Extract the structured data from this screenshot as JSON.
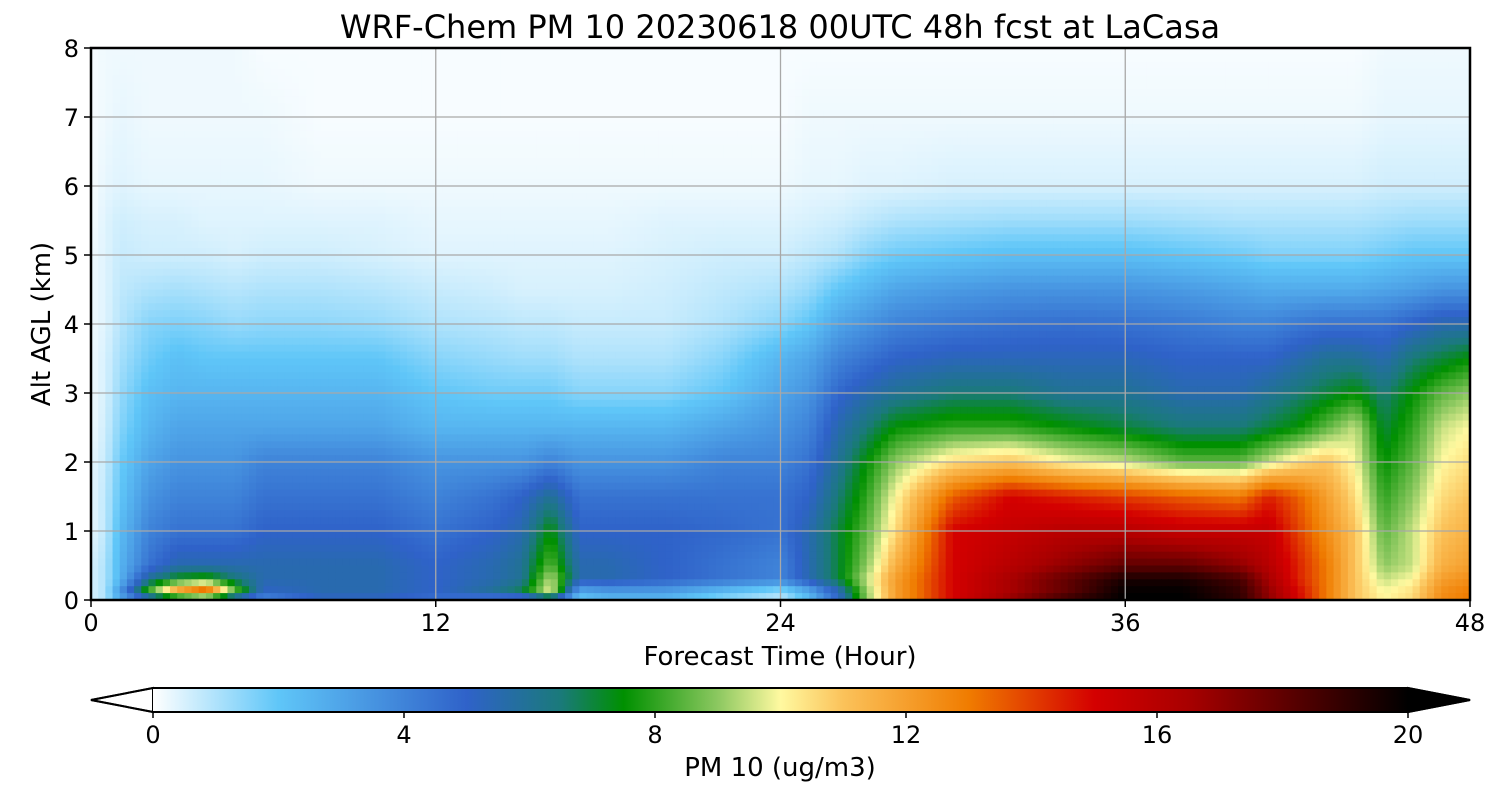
{
  "chart_data": {
    "type": "heatmap",
    "title": "WRF-Chem PM 10  20230618 00UTC 48h fcst at LaCasa",
    "xlabel": "Forecast Time (Hour)",
    "ylabel": "Alt AGL (km)",
    "xlim": [
      0,
      48
    ],
    "ylim": [
      0,
      8
    ],
    "x_ticks": [
      0,
      12,
      24,
      36,
      48
    ],
    "y_ticks": [
      0,
      1,
      2,
      3,
      4,
      5,
      6,
      7,
      8
    ],
    "grid": true,
    "colorbar": {
      "label": "PM 10  (ug/m3)",
      "range": [
        0,
        20
      ],
      "ticks": [
        0,
        4,
        8,
        12,
        16,
        20
      ],
      "extend": "both",
      "orientation": "horizontal",
      "placement": "bottom",
      "stops": [
        {
          "v": 0,
          "c": "#ffffff"
        },
        {
          "v": 2,
          "c": "#5fc6f8"
        },
        {
          "v": 5,
          "c": "#2f62c9"
        },
        {
          "v": 6.5,
          "c": "#1a7a7a"
        },
        {
          "v": 7.5,
          "c": "#009000"
        },
        {
          "v": 9,
          "c": "#8cc860"
        },
        {
          "v": 10,
          "c": "#fff9a0"
        },
        {
          "v": 11,
          "c": "#fbc25a"
        },
        {
          "v": 13,
          "c": "#f07c00"
        },
        {
          "v": 15,
          "c": "#d40000"
        },
        {
          "v": 16.5,
          "c": "#a80000"
        },
        {
          "v": 20,
          "c": "#000000"
        }
      ]
    },
    "time_hours": [
      0,
      0.5,
      1,
      2,
      3,
      4,
      5,
      6,
      8,
      10,
      12,
      14,
      15,
      16,
      17,
      18,
      20,
      22,
      24,
      25,
      26,
      27,
      28,
      30,
      32,
      34,
      36,
      38,
      40,
      41,
      42,
      43,
      44,
      45,
      46,
      47,
      48
    ],
    "altitude_km": [
      0,
      0.1,
      0.3,
      0.5,
      1,
      1.5,
      2,
      2.5,
      3,
      3.5,
      4,
      4.5,
      5,
      5.5,
      6,
      7,
      8
    ],
    "values": [
      [
        0.5,
        1.0,
        2.5,
        3.5,
        3.5,
        3.5,
        3.5,
        3.5,
        5.0,
        5.0,
        4.5,
        3.5,
        3.0,
        4.0,
        2.0,
        2.5,
        2.5,
        1.5,
        1.0,
        2.5,
        5.0,
        9.0,
        12.0,
        15.0,
        17.0,
        19.0,
        20.0,
        20.0,
        19.0,
        17.0,
        15.0,
        13.0,
        11.0,
        10.0,
        10.5,
        12.5,
        13.0
      ],
      [
        0.5,
        1.0,
        3.5,
        8.5,
        13.0,
        15.0,
        9.0,
        5.0,
        5.5,
        5.5,
        5.0,
        6.0,
        7.0,
        10.0,
        2.5,
        3.0,
        3.0,
        2.0,
        1.0,
        2.5,
        5.0,
        9.0,
        12.0,
        15.0,
        16.5,
        18.0,
        20.0,
        20.0,
        19.0,
        17.0,
        15.0,
        13.0,
        11.0,
        10.0,
        10.5,
        12.5,
        13.0
      ],
      [
        0.5,
        1.0,
        2.5,
        6.0,
        7.5,
        8.0,
        6.5,
        5.5,
        5.5,
        5.5,
        5.0,
        5.5,
        6.0,
        9.5,
        5.5,
        5.5,
        5.0,
        4.5,
        4.0,
        5.5,
        7.0,
        9.5,
        12.0,
        15.0,
        16.5,
        18.0,
        19.5,
        19.5,
        18.5,
        16.5,
        14.5,
        13.0,
        11.0,
        9.5,
        10.0,
        12.0,
        12.5
      ],
      [
        0.5,
        1.0,
        2.5,
        4.5,
        5.5,
        5.5,
        5.5,
        5.5,
        5.5,
        5.5,
        5.0,
        5.5,
        6.0,
        8.5,
        5.5,
        5.5,
        5.0,
        4.5,
        4.0,
        5.5,
        7.0,
        9.0,
        11.5,
        15.0,
        16.0,
        17.0,
        18.0,
        18.0,
        17.0,
        16.0,
        14.5,
        13.0,
        11.0,
        9.0,
        9.5,
        11.5,
        12.0
      ],
      [
        0.3,
        0.8,
        2.3,
        4.0,
        4.5,
        4.5,
        4.5,
        5.0,
        5.0,
        5.0,
        4.5,
        5.0,
        5.5,
        7.5,
        5.0,
        5.0,
        5.0,
        4.8,
        4.5,
        5.5,
        7.0,
        8.5,
        10.5,
        15.0,
        15.5,
        16.0,
        16.0,
        15.5,
        15.5,
        15.5,
        14.0,
        12.5,
        11.0,
        8.5,
        9.5,
        11.0,
        11.5
      ],
      [
        0.3,
        0.8,
        2.0,
        3.5,
        4.0,
        4.0,
        4.0,
        4.5,
        4.5,
        4.5,
        4.0,
        4.5,
        5.0,
        6.0,
        4.5,
        4.5,
        4.5,
        4.5,
        4.5,
        5.0,
        6.5,
        8.0,
        10.0,
        13.5,
        15.0,
        14.5,
        14.0,
        13.5,
        13.0,
        14.5,
        13.5,
        12.0,
        10.5,
        8.0,
        9.0,
        10.5,
        11.0
      ],
      [
        0.3,
        0.7,
        1.8,
        3.0,
        3.5,
        3.5,
        3.5,
        4.0,
        4.0,
        4.0,
        3.5,
        3.5,
        3.5,
        4.0,
        3.5,
        3.5,
        3.5,
        4.0,
        4.0,
        4.5,
        6.0,
        7.5,
        9.0,
        10.5,
        11.0,
        10.0,
        9.5,
        8.5,
        8.5,
        9.5,
        10.5,
        11.0,
        10.0,
        7.5,
        8.5,
        10.0,
        10.5
      ],
      [
        0.2,
        0.6,
        1.5,
        2.5,
        3.0,
        3.0,
        3.0,
        3.0,
        3.0,
        3.0,
        2.5,
        2.5,
        2.5,
        2.5,
        2.5,
        2.5,
        2.5,
        3.0,
        3.5,
        4.0,
        5.5,
        6.5,
        7.5,
        8.0,
        8.0,
        7.5,
        7.0,
        6.5,
        6.5,
        7.0,
        7.5,
        8.5,
        9.5,
        7.0,
        8.0,
        9.5,
        10.0
      ],
      [
        0.2,
        0.5,
        1.3,
        2.2,
        2.5,
        2.5,
        2.5,
        2.5,
        2.5,
        2.5,
        2.0,
        1.8,
        1.8,
        1.8,
        1.5,
        1.5,
        1.5,
        2.0,
        3.0,
        3.5,
        4.8,
        5.5,
        6.0,
        6.5,
        6.5,
        6.0,
        6.0,
        5.5,
        5.5,
        6.0,
        6.5,
        7.0,
        7.5,
        6.5,
        7.5,
        8.5,
        9.0
      ],
      [
        0.2,
        0.5,
        1.1,
        1.8,
        2.2,
        2.0,
        2.0,
        2.0,
        2.0,
        2.0,
        1.5,
        1.3,
        1.2,
        1.2,
        1.0,
        1.0,
        1.0,
        1.5,
        2.5,
        3.0,
        4.0,
        4.5,
        5.0,
        5.3,
        5.3,
        5.3,
        5.3,
        5.0,
        5.0,
        5.0,
        5.5,
        6.0,
        6.0,
        5.5,
        6.5,
        7.0,
        7.5
      ],
      [
        0.2,
        0.4,
        0.9,
        1.5,
        1.6,
        1.5,
        1.3,
        1.4,
        1.4,
        1.3,
        1.0,
        0.9,
        0.8,
        0.8,
        0.7,
        0.7,
        0.7,
        1.0,
        1.5,
        2.0,
        3.0,
        3.5,
        4.0,
        4.3,
        4.5,
        4.6,
        4.5,
        4.3,
        4.0,
        4.0,
        4.3,
        4.5,
        4.5,
        4.5,
        5.0,
        5.5,
        5.5
      ],
      [
        0.2,
        0.4,
        0.8,
        1.0,
        1.1,
        1.0,
        0.9,
        1.0,
        1.0,
        0.9,
        0.7,
        0.6,
        0.5,
        0.5,
        0.5,
        0.5,
        0.6,
        0.8,
        1.0,
        1.3,
        2.0,
        2.5,
        3.0,
        3.3,
        3.5,
        3.5,
        3.5,
        3.3,
        3.0,
        2.8,
        2.8,
        2.8,
        2.8,
        3.0,
        3.2,
        3.5,
        3.5
      ],
      [
        0.2,
        0.4,
        0.7,
        0.6,
        0.6,
        0.6,
        0.5,
        0.6,
        0.6,
        0.5,
        0.4,
        0.4,
        0.4,
        0.4,
        0.4,
        0.4,
        0.5,
        0.6,
        0.6,
        0.8,
        1.0,
        1.5,
        1.8,
        2.0,
        2.2,
        2.2,
        2.2,
        2.0,
        1.8,
        1.6,
        1.6,
        1.6,
        1.6,
        1.8,
        2.0,
        2.0,
        2.0
      ],
      [
        0.1,
        0.4,
        0.6,
        0.5,
        0.5,
        0.4,
        0.4,
        0.4,
        0.4,
        0.4,
        0.3,
        0.3,
        0.3,
        0.3,
        0.3,
        0.3,
        0.4,
        0.4,
        0.4,
        0.5,
        0.6,
        0.8,
        1.0,
        1.1,
        1.2,
        1.2,
        1.2,
        1.1,
        1.0,
        1.0,
        1.0,
        1.0,
        1.0,
        1.1,
        1.2,
        1.2,
        1.2
      ],
      [
        0.1,
        0.3,
        0.4,
        0.3,
        0.3,
        0.3,
        0.3,
        0.3,
        0.2,
        0.2,
        0.2,
        0.2,
        0.2,
        0.2,
        0.2,
        0.2,
        0.2,
        0.2,
        0.2,
        0.3,
        0.3,
        0.4,
        0.4,
        0.5,
        0.5,
        0.5,
        0.5,
        0.5,
        0.5,
        0.5,
        0.5,
        0.5,
        0.5,
        0.6,
        0.6,
        0.6,
        0.6
      ],
      [
        0.1,
        0.2,
        0.3,
        0.2,
        0.2,
        0.2,
        0.2,
        0.2,
        0.1,
        0.1,
        0.1,
        0.1,
        0.1,
        0.1,
        0.1,
        0.1,
        0.1,
        0.1,
        0.1,
        0.2,
        0.2,
        0.2,
        0.2,
        0.2,
        0.2,
        0.2,
        0.2,
        0.2,
        0.2,
        0.2,
        0.2,
        0.2,
        0.2,
        0.3,
        0.3,
        0.3,
        0.3
      ],
      [
        0.1,
        0.2,
        0.2,
        0.2,
        0.2,
        0.2,
        0.2,
        0.1,
        0.1,
        0.1,
        0.1,
        0.1,
        0.1,
        0.1,
        0.1,
        0.1,
        0.1,
        0.1,
        0.1,
        0.1,
        0.1,
        0.1,
        0.1,
        0.1,
        0.1,
        0.1,
        0.1,
        0.1,
        0.1,
        0.1,
        0.1,
        0.1,
        0.1,
        0.2,
        0.2,
        0.2,
        0.2
      ]
    ]
  }
}
